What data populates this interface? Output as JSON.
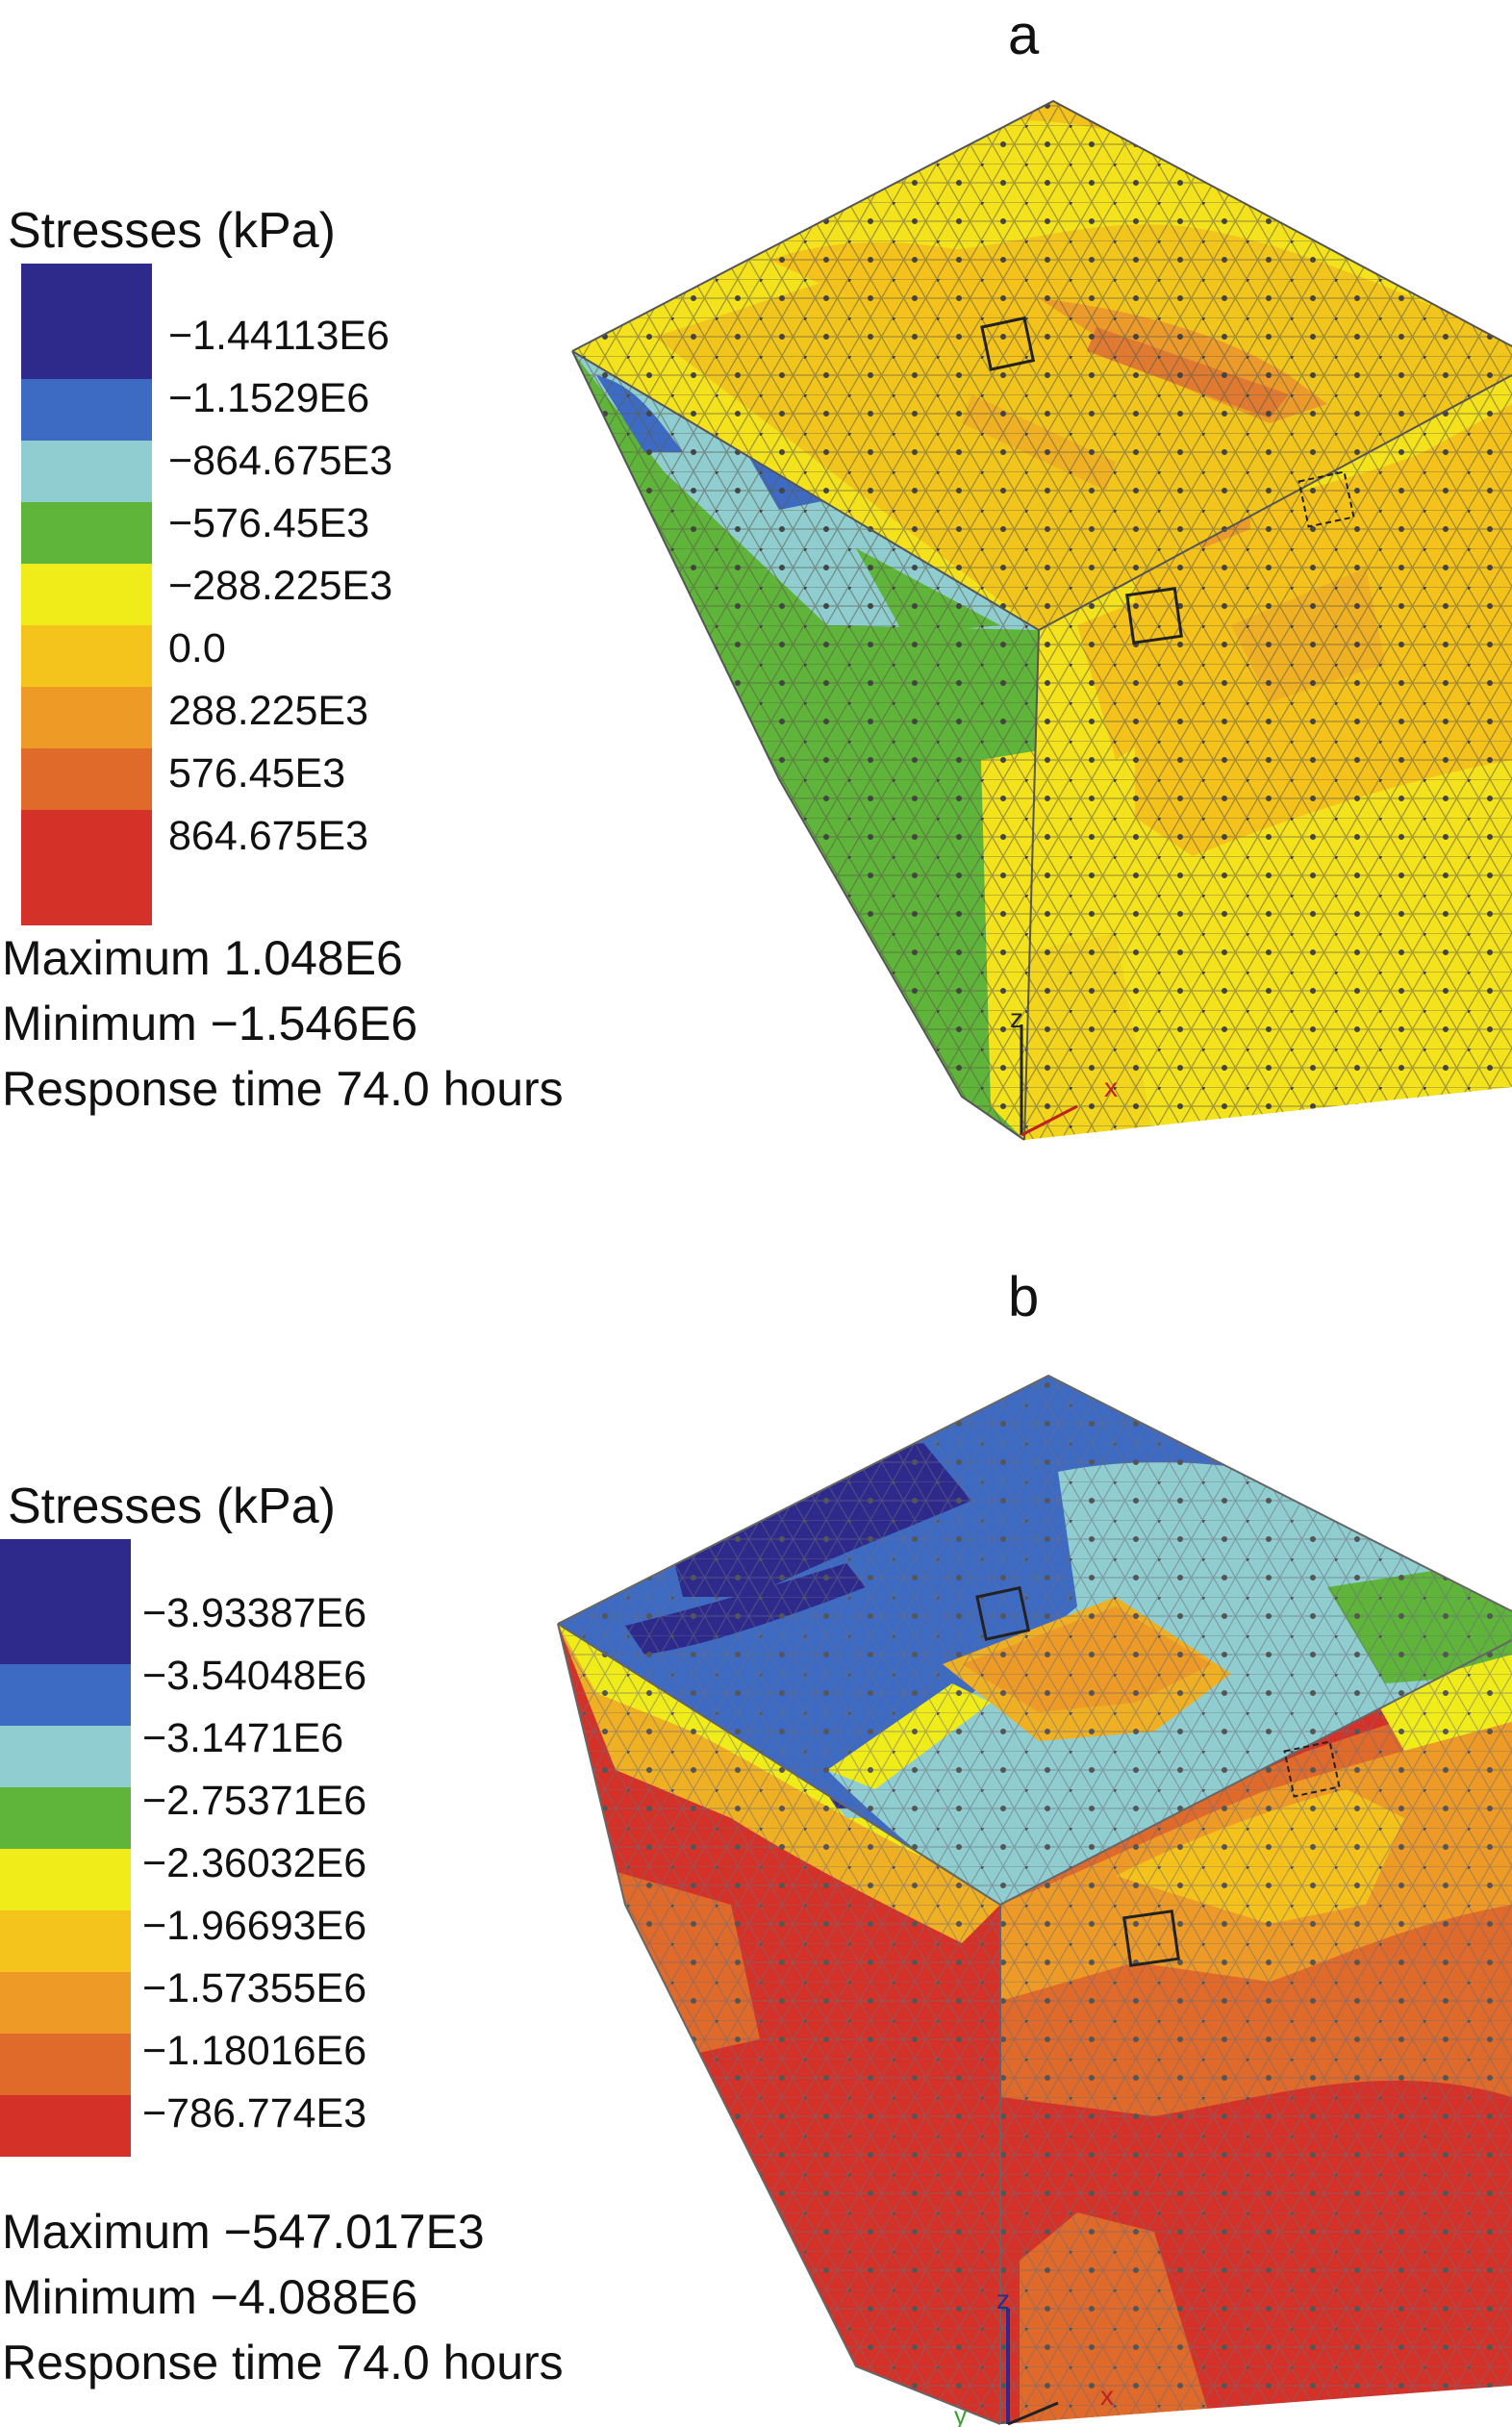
{
  "panels": [
    {
      "letter": "a",
      "legend_title": "Stresses (kPa)",
      "legend_labels": [
        "−1.44113E6",
        "−1.1529E6",
        "−864.675E3",
        "−576.45E3",
        "−288.225E3",
        "0.0",
        "288.225E3",
        "576.45E3",
        "864.675E3"
      ],
      "legend_colors": [
        "#2d2a8c",
        "#3d6bc4",
        "#8fcdd0",
        "#5fb43a",
        "#f0ec1a",
        "#f5c41c",
        "#ee9a26",
        "#e06a2a",
        "#d43228"
      ],
      "maximum": "Maximum 1.048E6",
      "minimum": "Minimum −1.546E6",
      "response_time": "Response time 74.0 hours",
      "axes": {
        "z": "z",
        "x": "x"
      }
    },
    {
      "letter": "b",
      "legend_title": "Stresses (kPa)",
      "legend_labels": [
        "−3.93387E6",
        "−3.54048E6",
        "−3.1471E6",
        "−2.75371E6",
        "−2.36032E6",
        "−1.96693E6",
        "−1.57355E6",
        "−1.18016E6",
        "−786.774E3"
      ],
      "legend_colors": [
        "#2d2a8c",
        "#3d6bc4",
        "#8fcdd0",
        "#5fb43a",
        "#f0ec1a",
        "#f5c41c",
        "#ee9a26",
        "#e06a2a",
        "#d43228"
      ],
      "maximum": "Maximum −547.017E3",
      "minimum": "Minimum −4.088E6",
      "response_time": "Response time 74.0 hours",
      "axes": {
        "z": "z",
        "y": "y",
        "x": "x"
      }
    }
  ]
}
